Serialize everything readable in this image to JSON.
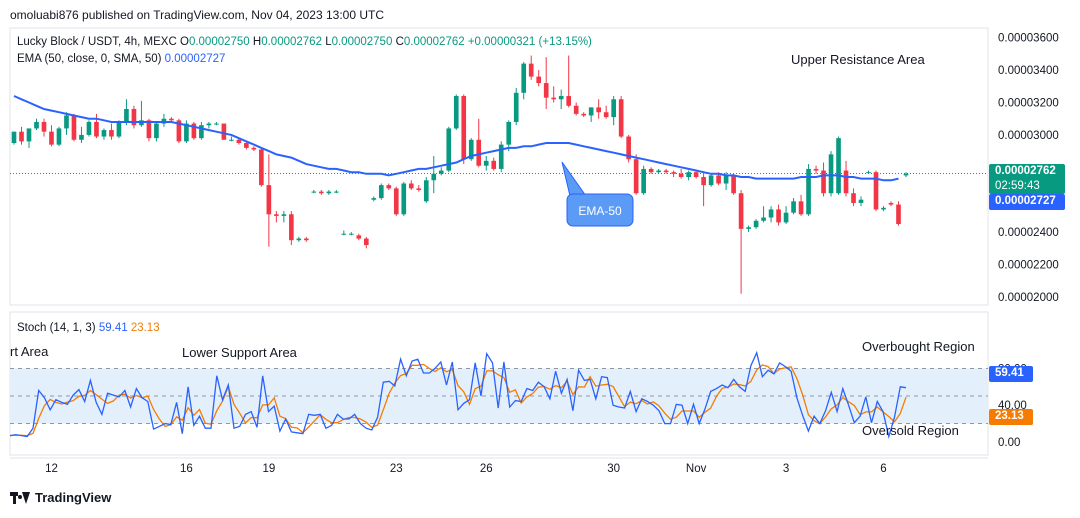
{
  "header": {
    "published": "omoluabi876 published on TradingView.com, Nov 04, 2023 13:00 UTC"
  },
  "legend": {
    "symbol": "Lucky Block / USDT, 4h, MEXC",
    "o_label": "O",
    "o_value": "0.00002750",
    "h_label": "H",
    "h_value": "0.00002762",
    "l_label": "L",
    "l_value": "0.00002750",
    "c_label": "C",
    "c_value": "0.00002762",
    "change": "+0.00000321 (+13.15%)",
    "ema_label": "EMA (50, close, 0, SMA, 50)",
    "ema_value": "0.00002727",
    "stoch_label": "Stoch (14, 1, 3)",
    "stoch_k_value": "59.41",
    "stoch_d_value": "23.13"
  },
  "price_tags": {
    "last_price": "0.00002762",
    "countdown": "02:59:43",
    "ema_price": "0.00002727",
    "stoch_k": "59.41",
    "stoch_d": "23.13"
  },
  "annotations": {
    "upper_resistance": "Upper Resistance Area",
    "ema_callout": "EMA-50",
    "lower_support_left": "rt Area",
    "lower_support": "Lower Support Area",
    "overbought": "Overbought Region",
    "oversold": "Oversold Region"
  },
  "colors": {
    "up": "#089981",
    "down": "#f23645",
    "ema": "#2962ff",
    "stoch_k": "#2962ff",
    "stoch_d": "#f57c00",
    "stoch_band": "#e3f0fb",
    "callout_fill": "#5b9bf5"
  },
  "footer": {
    "brand": "TradingView"
  },
  "chart_data": [
    {
      "type": "candlestick",
      "y_ticks": [
        "0.00003600",
        "0.00003400",
        "0.00003200",
        "0.00003000",
        "0.00002600",
        "0.00002400",
        "0.00002200",
        "0.00002000"
      ],
      "x_ticks": [
        {
          "label": "12",
          "index": 5
        },
        {
          "label": "16",
          "index": 23
        },
        {
          "label": "19",
          "index": 34
        },
        {
          "label": "23",
          "index": 51
        },
        {
          "label": "26",
          "index": 63
        },
        {
          "label": "30",
          "index": 80
        },
        {
          "label": "Nov",
          "index": 91
        },
        {
          "label": "3",
          "index": 103
        },
        {
          "label": "6",
          "index": 116
        }
      ],
      "ylim": [
        1.95e-05,
        3.66e-05
      ],
      "candles": [
        [
          2.95e-05,
          3.02e-05,
          2.94e-05,
          3.02e-05
        ],
        [
          3.02e-05,
          3.05e-05,
          2.94e-05,
          2.96e-05
        ],
        [
          2.96e-05,
          3.04e-05,
          2.92e-05,
          3.04e-05
        ],
        [
          3.04e-05,
          3.1e-05,
          3.03e-05,
          3.08e-05
        ],
        [
          3.08e-05,
          3.1e-05,
          2.99e-05,
          3.02e-05
        ],
        [
          3.02e-05,
          3.06e-05,
          2.93e-05,
          2.94e-05
        ],
        [
          2.94e-05,
          3.05e-05,
          2.93e-05,
          3.04e-05
        ],
        [
          3.04e-05,
          3.14e-05,
          3e-05,
          3.12e-05
        ],
        [
          3.12e-05,
          3.13e-05,
          2.96e-05,
          2.97e-05
        ],
        [
          2.97e-05,
          3.05e-05,
          2.95e-05,
          3e-05
        ],
        [
          3e-05,
          3.09e-05,
          2.99e-05,
          3.08e-05
        ],
        [
          3.08e-05,
          3.13e-05,
          2.98e-05,
          2.99e-05
        ],
        [
          2.99e-05,
          3.04e-05,
          2.97e-05,
          3.03e-05
        ],
        [
          3.03e-05,
          3.07e-05,
          2.97e-05,
          2.99e-05
        ],
        [
          2.99e-05,
          3.09e-05,
          2.98e-05,
          3.08e-05
        ],
        [
          3.08e-05,
          3.22e-05,
          3.06e-05,
          3.16e-05
        ],
        [
          3.16e-05,
          3.18e-05,
          3.04e-05,
          3.06e-05
        ],
        [
          3.06e-05,
          3.21e-05,
          3.05e-05,
          3.09e-05
        ],
        [
          3.09e-05,
          3.1e-05,
          2.96e-05,
          2.98e-05
        ],
        [
          2.98e-05,
          3.08e-05,
          2.96e-05,
          3.07e-05
        ],
        [
          3.07e-05,
          3.13e-05,
          3.05e-05,
          3.1e-05
        ],
        [
          3.1e-05,
          3.11e-05,
          3.08e-05,
          3.09e-05
        ],
        [
          3.09e-05,
          3.1e-05,
          2.95e-05,
          2.96e-05
        ],
        [
          2.96e-05,
          3.09e-05,
          2.95e-05,
          3.07e-05
        ],
        [
          3.07e-05,
          3.08e-05,
          2.97e-05,
          2.98e-05
        ],
        [
          2.98e-05,
          3.08e-05,
          2.97e-05,
          3.06e-05
        ],
        [
          3.06e-05,
          3.08e-05,
          3.04e-05,
          3.07e-05
        ],
        [
          3.07e-05,
          3.08e-05,
          3.06e-05,
          3.07e-05
        ],
        [
          3.07e-05,
          3.07e-05,
          2.97e-05,
          2.97e-05
        ],
        [
          2.97e-05,
          2.99e-05,
          2.96e-05,
          2.97e-05
        ],
        [
          2.97e-05,
          2.98e-05,
          2.94e-05,
          2.95e-05
        ],
        [
          2.95e-05,
          2.96e-05,
          2.91e-05,
          2.92e-05
        ],
        [
          2.92e-05,
          2.93e-05,
          2.9e-05,
          2.91e-05
        ],
        [
          2.91e-05,
          2.92e-05,
          2.68e-05,
          2.69e-05
        ],
        [
          2.69e-05,
          2.88e-05,
          2.31e-05,
          2.51e-05
        ],
        [
          2.51e-05,
          2.53e-05,
          2.46e-05,
          2.5e-05
        ],
        [
          2.5e-05,
          2.53e-05,
          2.46e-05,
          2.51e-05
        ],
        [
          2.51e-05,
          2.53e-05,
          2.32e-05,
          2.35e-05
        ],
        [
          2.35e-05,
          2.37e-05,
          2.34e-05,
          2.36e-05
        ],
        [
          2.36e-05,
          2.37e-05,
          2.34e-05,
          2.35e-05
        ],
        [
          2.65e-05,
          2.66e-05,
          2.64e-05,
          2.65e-05
        ],
        [
          2.65e-05,
          2.66e-05,
          2.63e-05,
          2.64e-05
        ],
        [
          2.64e-05,
          2.66e-05,
          2.63e-05,
          2.65e-05
        ],
        [
          2.65e-05,
          2.66e-05,
          2.64e-05,
          2.65e-05
        ],
        [
          2.39e-05,
          2.41e-05,
          2.38e-05,
          2.39e-05
        ],
        [
          2.39e-05,
          2.4e-05,
          2.38e-05,
          2.39e-05
        ],
        [
          2.38e-05,
          2.39e-05,
          2.35e-05,
          2.36e-05
        ],
        [
          2.36e-05,
          2.37e-05,
          2.3e-05,
          2.32e-05
        ],
        [
          2.6e-05,
          2.62e-05,
          2.59e-05,
          2.61e-05
        ],
        [
          2.61e-05,
          2.7e-05,
          2.6e-05,
          2.69e-05
        ],
        [
          2.69e-05,
          2.7e-05,
          2.66e-05,
          2.67e-05
        ],
        [
          2.67e-05,
          2.68e-05,
          2.5e-05,
          2.51e-05
        ],
        [
          2.51e-05,
          2.71e-05,
          2.5e-05,
          2.7e-05
        ],
        [
          2.7e-05,
          2.72e-05,
          2.66e-05,
          2.67e-05
        ],
        [
          2.67e-05,
          2.69e-05,
          2.65e-05,
          2.66e-05
        ],
        [
          2.59e-05,
          2.74e-05,
          2.58e-05,
          2.72e-05
        ],
        [
          2.72e-05,
          2.87e-05,
          2.64e-05,
          2.76e-05
        ],
        [
          2.76e-05,
          2.8e-05,
          2.75e-05,
          2.78e-05
        ],
        [
          2.78e-05,
          3.05e-05,
          2.77e-05,
          3.04e-05
        ],
        [
          3.04e-05,
          3.25e-05,
          3.03e-05,
          3.24e-05
        ],
        [
          3.24e-05,
          3.25e-05,
          2.82e-05,
          2.85e-05
        ],
        [
          2.85e-05,
          2.98e-05,
          2.84e-05,
          2.97e-05
        ],
        [
          2.97e-05,
          3.1e-05,
          2.8e-05,
          2.81e-05
        ],
        [
          2.81e-05,
          2.87e-05,
          2.78e-05,
          2.84e-05
        ],
        [
          2.84e-05,
          2.86e-05,
          2.78e-05,
          2.79e-05
        ],
        [
          2.79e-05,
          2.96e-05,
          2.77e-05,
          2.94e-05
        ],
        [
          2.94e-05,
          3.09e-05,
          2.9e-05,
          3.08e-05
        ],
        [
          3.08e-05,
          3.29e-05,
          3.06e-05,
          3.26e-05
        ],
        [
          3.26e-05,
          3.45e-05,
          3.22e-05,
          3.44e-05
        ],
        [
          3.44e-05,
          3.49e-05,
          3.34e-05,
          3.36e-05
        ],
        [
          3.36e-05,
          3.4e-05,
          3.3e-05,
          3.32e-05
        ],
        [
          3.32e-05,
          3.48e-05,
          3.16e-05,
          3.23e-05
        ],
        [
          3.23e-05,
          3.3e-05,
          3.2e-05,
          3.22e-05
        ],
        [
          3.22e-05,
          3.28e-05,
          3.16e-05,
          3.24e-05
        ],
        [
          3.24e-05,
          3.49e-05,
          3.17e-05,
          3.18e-05
        ],
        [
          3.18e-05,
          3.2e-05,
          3.12e-05,
          3.13e-05
        ],
        [
          3.13e-05,
          3.14e-05,
          3.11e-05,
          3.12e-05
        ],
        [
          3.12e-05,
          3.17e-05,
          3.08e-05,
          3.17e-05
        ],
        [
          3.17e-05,
          3.22e-05,
          3.1e-05,
          3.14e-05
        ],
        [
          3.14e-05,
          3.18e-05,
          3.1e-05,
          3.11e-05
        ],
        [
          3.11e-05,
          3.24e-05,
          3.06e-05,
          3.22e-05
        ],
        [
          3.22e-05,
          3.24e-05,
          2.98e-05,
          2.99e-05
        ],
        [
          2.99e-05,
          3e-05,
          2.83e-05,
          2.85e-05
        ],
        [
          2.85e-05,
          2.88e-05,
          2.63e-05,
          2.64e-05
        ],
        [
          2.64e-05,
          2.81e-05,
          2.63e-05,
          2.79e-05
        ],
        [
          2.79e-05,
          2.8e-05,
          2.76e-05,
          2.77e-05
        ],
        [
          2.77e-05,
          2.79e-05,
          2.76e-05,
          2.78e-05
        ],
        [
          2.78e-05,
          2.79e-05,
          2.76e-05,
          2.77e-05
        ],
        [
          2.77e-05,
          2.78e-05,
          2.74e-05,
          2.76e-05
        ],
        [
          2.76e-05,
          2.79e-05,
          2.73e-05,
          2.74e-05
        ],
        [
          2.74e-05,
          2.78e-05,
          2.72e-05,
          2.77e-05
        ],
        [
          2.77e-05,
          2.78e-05,
          2.73e-05,
          2.74e-05
        ],
        [
          2.74e-05,
          2.77e-05,
          2.56e-05,
          2.69e-05
        ],
        [
          2.69e-05,
          2.76e-05,
          2.68e-05,
          2.75e-05
        ],
        [
          2.75e-05,
          2.77e-05,
          2.69e-05,
          2.7e-05
        ],
        [
          2.7e-05,
          2.77e-05,
          2.66e-05,
          2.75e-05
        ],
        [
          2.75e-05,
          2.76e-05,
          2.63e-05,
          2.64e-05
        ],
        [
          2.64e-05,
          2.66e-05,
          2.02e-05,
          2.42e-05
        ],
        [
          2.42e-05,
          2.44e-05,
          2.4e-05,
          2.43e-05
        ],
        [
          2.43e-05,
          2.48e-05,
          2.42e-05,
          2.47e-05
        ],
        [
          2.47e-05,
          2.56e-05,
          2.46e-05,
          2.49e-05
        ],
        [
          2.49e-05,
          2.56e-05,
          2.46e-05,
          2.54e-05
        ],
        [
          2.54e-05,
          2.57e-05,
          2.44e-05,
          2.46e-05
        ],
        [
          2.46e-05,
          2.56e-05,
          2.45e-05,
          2.52e-05
        ],
        [
          2.52e-05,
          2.61e-05,
          2.51e-05,
          2.59e-05
        ],
        [
          2.59e-05,
          2.63e-05,
          2.5e-05,
          2.51e-05
        ],
        [
          2.51e-05,
          2.82e-05,
          2.5e-05,
          2.79e-05
        ],
        [
          2.79e-05,
          2.81e-05,
          2.76e-05,
          2.78e-05
        ],
        [
          2.78e-05,
          2.83e-05,
          2.62e-05,
          2.64e-05
        ],
        [
          2.64e-05,
          2.9e-05,
          2.62e-05,
          2.88e-05
        ],
        [
          2.64e-05,
          2.99e-05,
          2.63e-05,
          2.98e-05
        ],
        [
          2.78e-05,
          2.84e-05,
          2.62e-05,
          2.64e-05
        ],
        [
          2.64e-05,
          2.67e-05,
          2.56e-05,
          2.58e-05
        ],
        [
          2.58e-05,
          2.62e-05,
          2.56e-05,
          2.6e-05
        ],
        [
          2.77e-05,
          2.78e-05,
          2.76e-05,
          2.77e-05
        ],
        [
          2.77e-05,
          2.78e-05,
          2.53e-05,
          2.54e-05
        ],
        [
          2.54e-05,
          2.56e-05,
          2.53e-05,
          2.55e-05
        ],
        [
          2.58e-05,
          2.59e-05,
          2.56e-05,
          2.57e-05
        ],
        [
          2.57e-05,
          2.59e-05,
          2.44e-05,
          2.45e-05
        ],
        [
          2.75e-05,
          2.77e-05,
          2.74e-05,
          2.76e-05
        ]
      ],
      "ema": [
        3.24e-05,
        3.22e-05,
        3.2e-05,
        3.18e-05,
        3.16e-05,
        3.15e-05,
        3.14e-05,
        3.13e-05,
        3.12e-05,
        3.11e-05,
        3.1e-05,
        3.1e-05,
        3.09e-05,
        3.08e-05,
        3.08e-05,
        3.08e-05,
        3.08e-05,
        3.08e-05,
        3.08e-05,
        3.08e-05,
        3.08e-05,
        3.08e-05,
        3.07e-05,
        3.06e-05,
        3.05e-05,
        3.04e-05,
        3.03e-05,
        3.02e-05,
        3.01e-05,
        3e-05,
        2.98e-05,
        2.96e-05,
        2.94e-05,
        2.92e-05,
        2.9e-05,
        2.88e-05,
        2.87e-05,
        2.86e-05,
        2.84e-05,
        2.82e-05,
        2.81e-05,
        2.8e-05,
        2.79e-05,
        2.79e-05,
        2.78e-05,
        2.77e-05,
        2.77e-05,
        2.76e-05,
        2.76e-05,
        2.76e-05,
        2.75e-05,
        2.76e-05,
        2.77e-05,
        2.78e-05,
        2.79e-05,
        2.79e-05,
        2.8e-05,
        2.81e-05,
        2.82e-05,
        2.83e-05,
        2.85e-05,
        2.87e-05,
        2.88e-05,
        2.89e-05,
        2.9e-05,
        2.91e-05,
        2.92e-05,
        2.92e-05,
        2.93e-05,
        2.93e-05,
        2.94e-05,
        2.95e-05,
        2.95e-05,
        2.95e-05,
        2.95e-05,
        2.94e-05,
        2.93e-05,
        2.92e-05,
        2.91e-05,
        2.9e-05,
        2.89e-05,
        2.88e-05,
        2.87e-05,
        2.86e-05,
        2.85e-05,
        2.84e-05,
        2.83e-05,
        2.82e-05,
        2.81e-05,
        2.8e-05,
        2.79e-05,
        2.78e-05,
        2.77e-05,
        2.76e-05,
        2.76e-05,
        2.75e-05,
        2.75e-05,
        2.74e-05,
        2.74e-05,
        2.73e-05,
        2.73e-05,
        2.73e-05,
        2.73e-05,
        2.73e-05,
        2.73e-05,
        2.74e-05,
        2.74e-05,
        2.74e-05,
        2.75e-05,
        2.75e-05,
        2.75e-05,
        2.74e-05,
        2.74e-05,
        2.73e-05,
        2.73e-05,
        2.73e-05,
        2.72e-05,
        2.72e-05,
        2.73e-05
      ]
    },
    {
      "type": "line",
      "series": [
        {
          "name": "%K",
          "values": [
            7,
            8,
            7,
            6,
            15,
            56,
            48,
            35,
            46,
            43,
            41,
            51,
            57,
            44,
            67,
            43,
            30,
            53,
            51,
            49,
            56,
            38,
            58,
            48,
            44,
            14,
            17,
            20,
            19,
            43,
            9,
            60,
            18,
            28,
            15,
            15,
            72,
            46,
            62,
            15,
            17,
            30,
            33,
            16,
            72,
            33,
            39,
            12,
            25,
            11,
            10,
            9,
            30,
            29,
            30,
            15,
            18,
            30,
            25,
            25,
            30,
            20,
            15,
            13,
            27,
            65,
            66,
            61,
            90,
            72,
            88,
            90,
            75,
            75,
            80,
            87,
            62,
            87,
            35,
            42,
            46,
            86,
            50,
            96,
            86,
            37,
            87,
            38,
            45,
            44,
            58,
            56,
            65,
            60,
            47,
            77,
            53,
            68,
            34,
            78,
            67,
            68,
            47,
            71,
            70,
            40,
            38,
            37,
            55,
            33,
            47,
            44,
            40,
            34,
            20,
            20,
            41,
            40,
            20,
            41,
            20,
            36,
            55,
            58,
            62,
            59,
            68,
            60,
            55,
            83,
            97,
            71,
            78,
            74,
            86,
            82,
            77,
            48,
            29,
            12,
            28,
            20,
            34,
            54,
            33,
            58,
            40,
            21,
            28,
            49,
            21,
            44,
            33,
            6,
            27,
            60,
            59
          ]
        }
      ]
    }
  ]
}
